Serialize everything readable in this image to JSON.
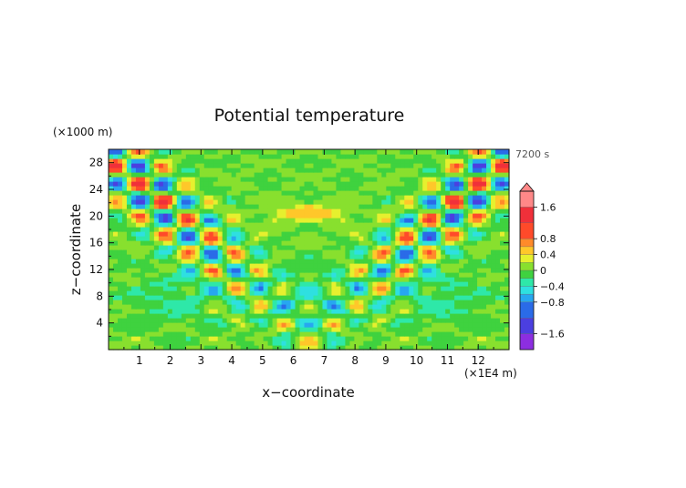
{
  "chart_data": {
    "type": "heatmap",
    "title": "Potential temperature",
    "xlabel": "x−coordinate",
    "ylabel": "z−coordinate",
    "x_unit": "(×1E4 m)",
    "y_unit": "(×1000 m)",
    "time_label": "7200 s",
    "xlim": [
      0,
      13
    ],
    "ylim": [
      0,
      30
    ],
    "x_ticks": [
      1,
      2,
      3,
      4,
      5,
      6,
      7,
      8,
      9,
      10,
      11,
      12
    ],
    "y_ticks": [
      4,
      8,
      12,
      16,
      20,
      24,
      28
    ],
    "colorbar": {
      "tick_values": [
        1.6,
        0.8,
        0.4,
        0,
        -0.4,
        -0.8,
        -1.6
      ],
      "tick_labels": [
        "1.6",
        "0.8",
        "0.4",
        "0",
        "−0.4",
        "−0.8",
        "−1.6"
      ],
      "levels": [
        -2.0,
        -1.6,
        -1.2,
        -0.8,
        -0.6,
        -0.4,
        -0.2,
        0,
        0.2,
        0.4,
        0.6,
        0.8,
        1.2,
        1.6,
        2.0
      ],
      "colors": [
        "#8c2ee0",
        "#4b3fe0",
        "#2a6be8",
        "#27a7f0",
        "#2ee0e0",
        "#2ee8a8",
        "#3fd23f",
        "#88e02e",
        "#e6f02e",
        "#ffc72a",
        "#ff8a2a",
        "#ff4a2a",
        "#f0303a",
        "#ff8888"
      ]
    },
    "field_description": "Gravity-wave pattern of potential temperature anomaly; values range about -1.0 to 1.2, zero-anomaly dominant in the lower layers, X-shaped wave bands radiating upward from x=6.5",
    "grid": false
  }
}
